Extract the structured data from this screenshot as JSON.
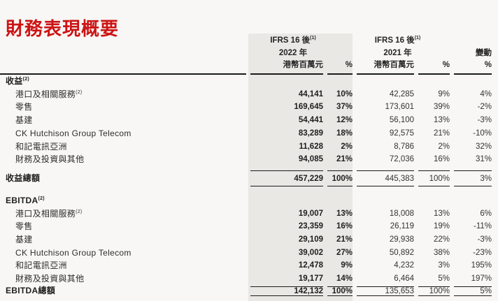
{
  "page_title": "財務表現概要",
  "colors": {
    "title_red": "#cc1414",
    "band_gray": "#e9e8e5",
    "rule_black": "#1b1b1b",
    "page_bg": "#f8f7f5"
  },
  "table": {
    "header": {
      "group_2022": {
        "basis": "IFRS 16 後",
        "basis_sup": "(1)",
        "year": "2022 年",
        "unit": "港幣百萬元",
        "pct": "%"
      },
      "group_2021": {
        "basis": "IFRS 16 後",
        "basis_sup": "(1)",
        "year": "2021 年",
        "unit": "港幣百萬元",
        "pct": "%"
      },
      "change": {
        "label": "變動",
        "pct": "%"
      }
    },
    "sections": [
      {
        "title": "收益",
        "title_sup": "(2)",
        "rows": [
          {
            "label": "港口及相關服務",
            "sup": "(2)",
            "a22": "44,141",
            "p22": "10%",
            "a21": "42,285",
            "p21": "9%",
            "chg": "4%"
          },
          {
            "label": "零售",
            "a22": "169,645",
            "p22": "37%",
            "a21": "173,601",
            "p21": "39%",
            "chg": "-2%"
          },
          {
            "label": "基建",
            "a22": "54,441",
            "p22": "12%",
            "a21": "56,100",
            "p21": "13%",
            "chg": "-3%"
          },
          {
            "label": "CK Hutchison Group Telecom",
            "a22": "83,289",
            "p22": "18%",
            "a21": "92,575",
            "p21": "21%",
            "chg": "-10%"
          },
          {
            "label": "和記電訊亞洲",
            "a22": "11,628",
            "p22": "2%",
            "a21": "8,786",
            "p21": "2%",
            "chg": "32%"
          },
          {
            "label": "財務及投資與其他",
            "a22": "94,085",
            "p22": "21%",
            "a21": "72,036",
            "p21": "16%",
            "chg": "31%"
          }
        ],
        "total": {
          "label": "收益總額",
          "a22": "457,229",
          "p22": "100%",
          "a21": "445,383",
          "p21": "100%",
          "chg": "3%"
        }
      },
      {
        "title": "EBITDA",
        "title_sup": "(2)",
        "rows": [
          {
            "label": "港口及相關服務",
            "sup": "(2)",
            "a22": "19,007",
            "p22": "13%",
            "a21": "18,008",
            "p21": "13%",
            "chg": "6%"
          },
          {
            "label": "零售",
            "a22": "23,359",
            "p22": "16%",
            "a21": "26,119",
            "p21": "19%",
            "chg": "-11%"
          },
          {
            "label": "基建",
            "a22": "29,109",
            "p22": "21%",
            "a21": "29,938",
            "p21": "22%",
            "chg": "-3%"
          },
          {
            "label": "CK Hutchison Group Telecom",
            "a22": "39,002",
            "p22": "27%",
            "a21": "50,892",
            "p21": "38%",
            "chg": "-23%"
          },
          {
            "label": "和記電訊亞洲",
            "a22": "12,478",
            "p22": "9%",
            "a21": "4,232",
            "p21": "3%",
            "chg": "195%"
          },
          {
            "label": "財務及投資與其他",
            "a22": "19,177",
            "p22": "14%",
            "a21": "6,464",
            "p21": "5%",
            "chg": "197%"
          }
        ],
        "total": {
          "label": "EBITDA總額",
          "a22": "142,132",
          "p22": "100%",
          "a21": "135,653",
          "p21": "100%",
          "chg": "5%"
        }
      }
    ]
  }
}
